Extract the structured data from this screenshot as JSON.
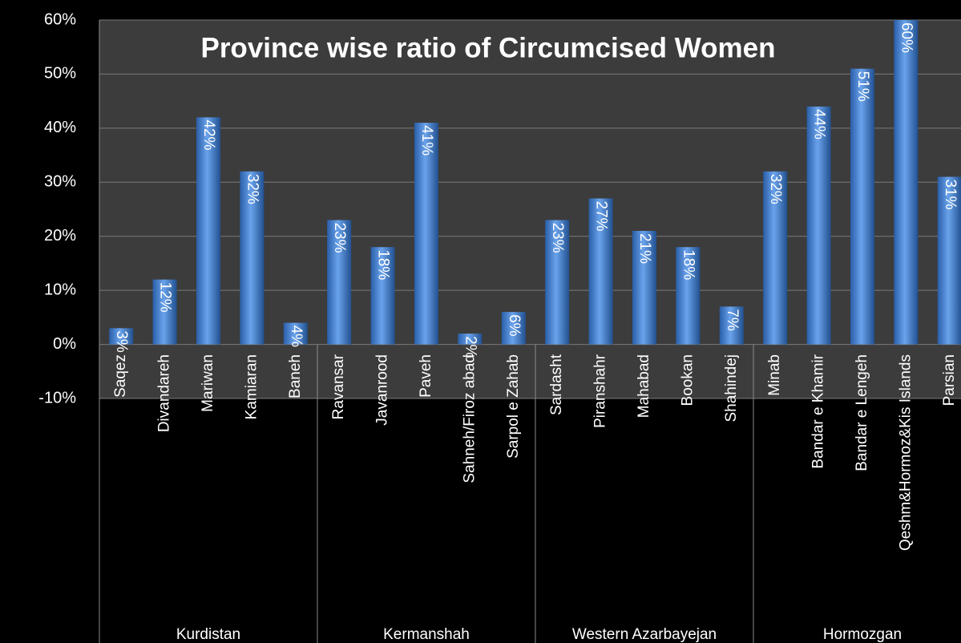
{
  "chart_data": {
    "type": "bar",
    "title": "Province wise ratio of Circumcised Women",
    "groups": [
      {
        "name": "Kurdistan",
        "categories": [
          "Saqez",
          "Divandareh",
          "Mariwan",
          "Kamiaran",
          "Baneh"
        ]
      },
      {
        "name": "Kermanshah",
        "categories": [
          "Ravansar",
          "Javanrood",
          "Paveh",
          "Sahneh/Firoz abad",
          "Sarpol e Zahab"
        ]
      },
      {
        "name": "Western Azarbayejan",
        "categories": [
          "Sardasht",
          "Piranshahr",
          "Mahabad",
          "Bookan",
          "Shahindej"
        ]
      },
      {
        "name": "Hormozgan",
        "categories": [
          "Minab",
          "Bandar e Khamir",
          "Bandar e Lengeh",
          "Qeshm&Hormoz&Kis Islands",
          "Parsian"
        ]
      }
    ],
    "values": [
      3,
      12,
      42,
      32,
      4,
      23,
      18,
      41,
      2,
      6,
      23,
      27,
      21,
      18,
      7,
      32,
      44,
      51,
      60,
      31
    ],
    "value_labels": [
      "3%",
      "12%",
      "42%",
      "32%",
      "4%",
      "23%",
      "18%",
      "41%",
      "2%",
      "6%",
      "23%",
      "27%",
      "21%",
      "18%",
      "7%",
      "32%",
      "44%",
      "51%",
      "60%",
      "31%"
    ],
    "color": "#3f7fd0",
    "ylim": [
      -10,
      60
    ],
    "yticks": [
      {
        "value": -10,
        "label": "-10%"
      },
      {
        "value": 0,
        "label": "0%"
      },
      {
        "value": 10,
        "label": "10%"
      },
      {
        "value": 20,
        "label": "20%"
      },
      {
        "value": 30,
        "label": "30%"
      },
      {
        "value": 40,
        "label": "40%"
      },
      {
        "value": 50,
        "label": "50%"
      },
      {
        "value": 60,
        "label": "60%"
      }
    ],
    "grid": true
  }
}
